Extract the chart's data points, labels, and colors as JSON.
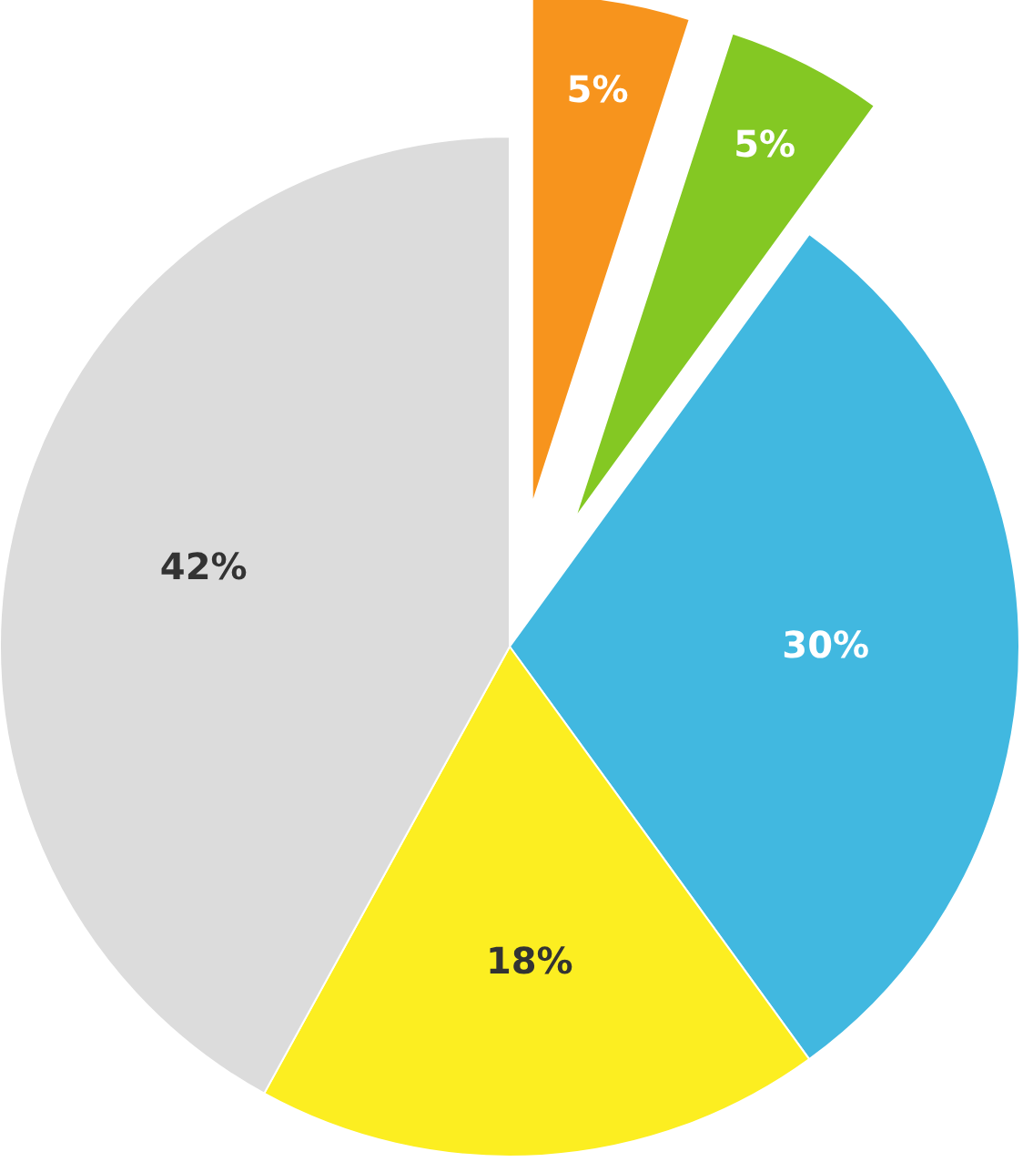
{
  "chart_data": {
    "type": "pie",
    "categories": [
      null,
      null,
      null,
      null,
      null
    ],
    "values": [
      5,
      5,
      30,
      18,
      42
    ],
    "colors": [
      "#f7941d",
      "#84c823",
      "#41b8e0",
      "#fcee21",
      "#dcdcdc"
    ],
    "value_labels": [
      "5%",
      "5%",
      "30%",
      "18%",
      "42%"
    ]
  }
}
